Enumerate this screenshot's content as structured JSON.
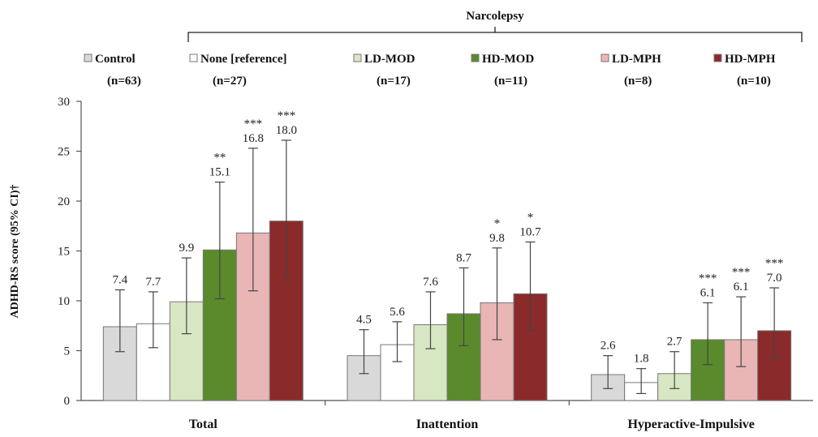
{
  "chart_data": {
    "type": "bar",
    "bracket_label": "Narcolepsy",
    "ylabel": "ADHD-RS score (95% CI)†",
    "ylim": [
      0,
      30
    ],
    "yticks": [
      "0",
      "5",
      "10",
      "15",
      "20",
      "25",
      "30"
    ],
    "categories": [
      "Total",
      "Inattention",
      "Hyperactive-Impulsive"
    ],
    "series": [
      {
        "name": "Control",
        "n_label": "(n=63)",
        "color": "#d9d9d9",
        "values": [
          7.4,
          4.5,
          2.6
        ],
        "labels": [
          "7.4",
          "4.5",
          "2.6"
        ],
        "ci": [
          [
            4.9,
            11.1
          ],
          [
            2.7,
            7.1
          ],
          [
            1.2,
            4.5
          ]
        ],
        "sig": [
          "",
          "",
          ""
        ]
      },
      {
        "name": "None [reference]",
        "n_label": "(n=27)",
        "color": "#ffffff",
        "values": [
          7.7,
          5.6,
          1.8
        ],
        "labels": [
          "7.7",
          "5.6",
          "1.8"
        ],
        "ci": [
          [
            5.3,
            10.9
          ],
          [
            3.9,
            7.9
          ],
          [
            0.7,
            3.2
          ]
        ],
        "sig": [
          "",
          "",
          ""
        ]
      },
      {
        "name": "LD-MOD",
        "n_label": "(n=17)",
        "color": "#d8e7c3",
        "values": [
          9.9,
          7.6,
          2.7
        ],
        "labels": [
          "9.9",
          "7.6",
          "2.7"
        ],
        "ci": [
          [
            6.7,
            14.3
          ],
          [
            5.2,
            10.9
          ],
          [
            1.2,
            4.9
          ]
        ],
        "sig": [
          "",
          "",
          ""
        ]
      },
      {
        "name": "HD-MOD",
        "n_label": "(n=11)",
        "color": "#5a8a2c",
        "values": [
          15.1,
          8.7,
          6.1
        ],
        "labels": [
          "15.1",
          "8.7",
          "6.1"
        ],
        "ci": [
          [
            10.2,
            21.9
          ],
          [
            5.5,
            13.3
          ],
          [
            3.6,
            9.8
          ]
        ],
        "sig": [
          "**",
          "",
          "***"
        ]
      },
      {
        "name": "LD-MPH",
        "n_label": "(n=8)",
        "color": "#e9b5b5",
        "values": [
          16.8,
          9.8,
          6.1
        ],
        "labels": [
          "16.8",
          "9.8",
          "6.1"
        ],
        "ci": [
          [
            11.0,
            25.3
          ],
          [
            6.1,
            15.3
          ],
          [
            3.4,
            10.4
          ]
        ],
        "sig": [
          "***",
          "*",
          "***"
        ]
      },
      {
        "name": "HD-MPH",
        "n_label": "(n=10)",
        "color": "#8b2a2a",
        "values": [
          18.0,
          10.7,
          7.0
        ],
        "labels": [
          "18.0",
          "10.7",
          "7.0"
        ],
        "ci": [
          [
            12.3,
            26.1
          ],
          [
            7.0,
            15.9
          ],
          [
            4.3,
            11.3
          ]
        ],
        "sig": [
          "***",
          "*",
          "***"
        ]
      }
    ]
  }
}
